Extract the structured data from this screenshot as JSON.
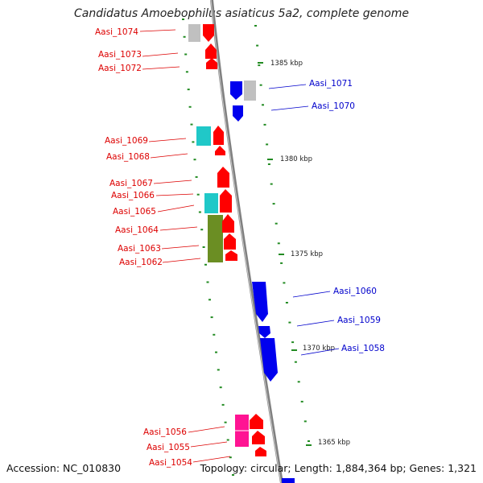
{
  "title": "Candidatus Amoebophilus asiaticus 5a2, complete genome",
  "footer": {
    "accession": "Accession: NC_010830",
    "summary": "Topology: circular; Length: 1,884,364 bp; Genes: 1,321"
  },
  "colors": {
    "minus_label": "#dd0000",
    "plus_label": "#0000cc",
    "backbone": "#808080",
    "tick": "#228b22",
    "red_gene": "#ff0000",
    "blue_gene": "#0000ee",
    "gray_gene": "#c0c0c0",
    "cyan_gene": "#20c8c8",
    "olive_gene": "#6b8e23",
    "pink_gene": "#ff1493"
  },
  "kbp_labels": [
    "1385 kbp",
    "1380 kbp",
    "1375 kbp",
    "1370 kbp",
    "1365 kbp"
  ],
  "minus_genes": [
    "Aasi_1074",
    "Aasi_1073",
    "Aasi_1072",
    "Aasi_1069",
    "Aasi_1068",
    "Aasi_1067",
    "Aasi_1066",
    "Aasi_1065",
    "Aasi_1064",
    "Aasi_1063",
    "Aasi_1062",
    "Aasi_1056",
    "Aasi_1055",
    "Aasi_1054"
  ],
  "plus_genes": [
    "Aasi_1071",
    "Aasi_1070",
    "Aasi_1060",
    "Aasi_1059",
    "Aasi_1058"
  ]
}
